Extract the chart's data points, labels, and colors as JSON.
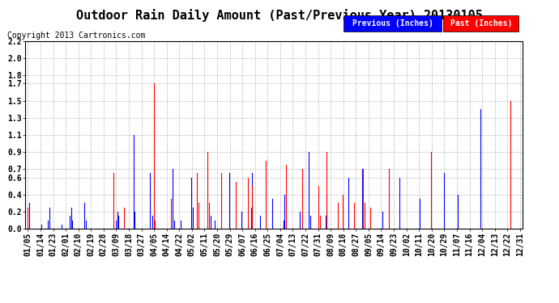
{
  "title": "Outdoor Rain Daily Amount (Past/Previous Year) 20130105",
  "copyright": "Copyright 2013 Cartronics.com",
  "legend_previous": "Previous (Inches)",
  "legend_past": "Past (Inches)",
  "yticks": [
    0.0,
    0.2,
    0.4,
    0.6,
    0.7,
    0.9,
    1.1,
    1.3,
    1.5,
    1.7,
    1.8,
    2.0,
    2.2
  ],
  "ylim_max": 2.2,
  "background_color": "#ffffff",
  "grid_color": "#bbbbbb",
  "previous_color": "#0000ff",
  "past_color": "#ff0000",
  "title_fontsize": 11,
  "copyright_fontsize": 7,
  "tick_fontsize": 7,
  "num_days": 365,
  "xtick_labels": [
    "01/05",
    "01/14",
    "01/23",
    "02/01",
    "02/10",
    "02/19",
    "02/28",
    "03/09",
    "03/18",
    "03/27",
    "04/05",
    "04/14",
    "04/22",
    "05/02",
    "05/11",
    "05/20",
    "05/29",
    "06/07",
    "06/16",
    "06/25",
    "07/04",
    "07/13",
    "07/22",
    "07/31",
    "08/09",
    "08/18",
    "08/27",
    "09/05",
    "09/14",
    "09/23",
    "10/02",
    "10/11",
    "10/20",
    "10/29",
    "11/07",
    "11/16",
    "12/04",
    "12/13",
    "12/22",
    "12/31"
  ],
  "previous_rain": [
    0,
    0.3,
    0,
    0,
    0,
    0,
    0,
    0,
    0,
    0,
    0.05,
    0,
    0,
    0,
    0,
    0.1,
    0.25,
    0,
    0,
    0,
    0,
    0,
    0,
    0,
    0,
    0.05,
    0,
    0,
    0,
    0,
    0,
    0.15,
    0.25,
    0.1,
    0,
    0,
    0,
    0,
    0,
    0,
    0,
    0,
    0.3,
    0.1,
    0,
    0,
    0,
    0,
    0,
    0,
    0,
    0,
    0,
    0,
    0,
    0,
    0,
    0,
    0,
    0,
    0,
    0,
    0,
    0,
    0,
    0.1,
    0.2,
    0.15,
    0,
    0,
    0,
    0,
    0,
    0,
    0,
    0,
    0,
    0,
    1.1,
    0.2,
    0,
    0,
    0,
    0,
    0,
    0,
    0,
    0,
    0,
    0,
    0.65,
    0,
    0.15,
    0,
    0,
    0,
    0,
    0,
    0,
    0,
    0,
    0,
    0,
    0,
    0,
    0,
    0,
    0.7,
    0.1,
    0,
    0,
    0,
    0,
    0.1,
    0,
    0,
    0,
    0,
    0,
    0,
    0,
    0.6,
    0.25,
    0,
    0,
    0,
    0,
    0,
    0,
    0,
    0,
    0,
    0,
    0,
    0,
    0.15,
    0,
    0,
    0.1,
    0,
    0,
    0,
    0,
    0,
    0,
    0,
    0,
    0,
    0,
    0.65,
    0,
    0,
    0,
    0,
    0,
    0,
    0,
    0,
    0.2,
    0,
    0,
    0,
    0,
    0,
    0,
    0.25,
    0.65,
    0,
    0,
    0,
    0,
    0,
    0.15,
    0,
    0,
    0,
    0,
    0,
    0,
    0,
    0,
    0.35,
    0,
    0,
    0,
    0,
    0,
    0,
    0,
    0.1,
    0.4,
    0,
    0,
    0,
    0,
    0,
    0,
    0,
    0,
    0,
    0,
    0.2,
    0,
    0,
    0,
    0,
    0,
    0,
    0.9,
    0.15,
    0,
    0,
    0,
    0,
    0,
    0,
    0,
    0,
    0,
    0,
    0.15,
    0.4,
    0,
    0,
    0,
    0,
    0,
    0,
    0,
    0,
    0,
    0,
    0,
    0,
    0,
    0,
    0,
    0.6,
    0,
    0,
    0,
    0,
    0,
    0,
    0,
    0,
    0,
    0.7,
    0,
    0,
    0,
    0,
    0,
    0,
    0,
    0,
    0,
    0,
    0,
    0,
    0,
    0,
    0.2,
    0,
    0,
    0,
    0,
    0,
    0,
    0,
    0,
    0,
    0,
    0,
    0,
    0.6,
    0,
    0,
    0,
    0,
    0,
    0,
    0,
    0,
    0,
    0,
    0,
    0,
    0,
    0,
    0.35,
    0,
    0,
    0,
    0,
    0,
    0,
    0,
    0,
    0,
    0,
    0,
    0,
    0,
    0,
    0,
    0,
    0,
    0.65,
    0,
    0,
    0,
    0,
    0,
    0,
    0,
    0,
    0,
    0.4,
    0,
    0,
    0,
    0,
    0,
    0,
    0,
    0,
    0,
    0,
    0,
    0,
    0,
    0,
    0,
    0,
    1.4,
    0,
    0,
    0,
    0,
    0,
    0,
    0,
    0,
    0,
    0,
    0,
    0,
    0,
    0,
    0,
    0,
    0,
    0,
    0,
    0,
    0,
    0,
    0,
    0,
    0,
    0,
    0,
    0,
    0
  ],
  "past_rain": [
    0.25,
    0,
    0,
    0,
    0,
    0,
    0,
    0,
    0,
    0,
    0,
    0,
    0,
    0,
    0,
    0,
    0,
    0,
    0,
    0,
    0,
    0,
    0,
    0,
    0,
    0,
    0,
    0,
    0,
    0,
    0,
    0,
    0,
    0,
    0,
    0,
    0,
    0,
    0,
    0,
    0,
    0,
    0,
    0,
    0,
    0,
    0,
    0,
    0,
    0,
    0,
    0,
    0,
    0,
    0,
    0,
    0,
    0,
    0,
    0,
    0,
    0,
    0,
    0.65,
    0,
    0,
    0,
    0,
    0,
    0,
    0,
    0.25,
    0,
    0,
    0,
    0,
    0,
    0,
    0,
    0,
    0,
    0,
    0,
    0,
    0,
    0,
    0,
    0,
    0,
    0,
    0,
    0,
    0,
    1.7,
    0.1,
    0,
    0,
    0,
    0,
    0,
    0,
    0,
    0,
    0,
    0,
    0,
    0.35,
    0,
    0,
    0,
    0,
    0,
    0,
    0,
    0,
    0,
    0,
    0,
    0,
    0,
    0,
    0,
    0,
    0,
    0,
    0.65,
    0.3,
    0,
    0,
    0,
    0,
    0,
    0,
    0.9,
    0.3,
    0,
    0,
    0,
    0,
    0,
    0,
    0,
    0,
    0.65,
    0,
    0,
    0,
    0,
    0,
    0,
    0,
    0,
    0,
    0,
    0.55,
    0,
    0,
    0,
    0,
    0,
    0,
    0,
    0,
    0.6,
    0,
    0,
    0.5,
    0,
    0,
    0,
    0,
    0,
    0,
    0,
    0,
    0,
    0.8,
    0,
    0,
    0,
    0,
    0,
    0,
    0,
    0,
    0,
    0,
    0,
    0,
    0,
    0,
    0.75,
    0,
    0,
    0,
    0,
    0,
    0,
    0,
    0,
    0,
    0,
    0,
    0.7,
    0,
    0,
    0,
    0,
    0,
    0,
    0,
    0,
    0,
    0,
    0,
    0.5,
    0.15,
    0,
    0,
    0,
    0,
    0.9,
    0,
    0,
    0,
    0,
    0,
    0,
    0,
    0.3,
    0,
    0,
    0,
    0.4,
    0,
    0,
    0,
    0,
    0,
    0,
    0,
    0.3,
    0,
    0,
    0,
    0,
    0,
    0,
    0.7,
    0.3,
    0,
    0,
    0,
    0.25,
    0,
    0,
    0,
    0,
    0,
    0,
    0,
    0,
    0,
    0,
    0,
    0,
    0,
    0.7,
    0,
    0,
    0,
    0,
    0,
    0,
    0,
    0,
    0,
    0,
    0,
    0,
    0,
    0,
    0,
    0,
    0,
    0,
    0,
    0,
    0,
    0,
    0,
    0,
    0,
    0,
    0,
    0,
    0,
    0,
    0.9,
    0,
    0,
    0,
    0,
    0,
    0,
    0,
    0,
    0,
    0,
    0,
    0,
    0,
    0,
    0,
    0,
    0,
    0,
    0,
    0,
    0,
    0,
    0,
    0,
    0,
    0,
    0,
    0,
    0,
    0,
    0,
    0,
    0,
    0,
    0,
    0,
    0,
    0,
    0,
    0,
    0,
    0,
    0,
    0,
    0,
    0,
    0,
    0,
    0,
    0,
    0,
    0,
    0,
    0,
    0,
    0,
    0,
    0,
    1.5,
    0,
    0,
    0,
    0,
    0,
    0,
    0
  ]
}
